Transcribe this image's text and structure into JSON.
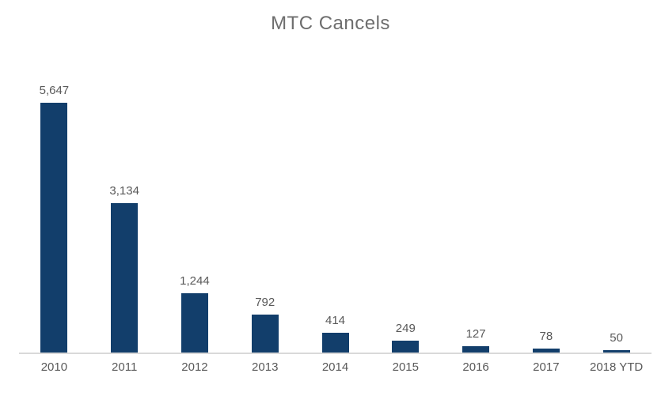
{
  "title": "MTC Cancels",
  "colors": {
    "bar_fill": "#123e6b",
    "value_label": "#595959",
    "axis_label": "#595959",
    "title_text": "#6e6e6e",
    "axis_line": "#d9d9d9",
    "background": "#ffffff"
  },
  "chart_data": {
    "type": "bar",
    "title": "MTC Cancels",
    "categories": [
      "2010",
      "2011",
      "2012",
      "2013",
      "2014",
      "2015",
      "2016",
      "2017",
      "2018 YTD"
    ],
    "values": [
      5647,
      3134,
      1244,
      792,
      414,
      249,
      127,
      78,
      50
    ],
    "value_labels": [
      "5,647",
      "3,134",
      "1,244",
      "792",
      "414",
      "249",
      "127",
      "78",
      "50"
    ],
    "xlabel": "",
    "ylabel": "",
    "ylim": [
      0,
      5647
    ],
    "grid": false,
    "legend": false,
    "data_labels_position": "above-bar",
    "axis": "x-baseline-only"
  }
}
